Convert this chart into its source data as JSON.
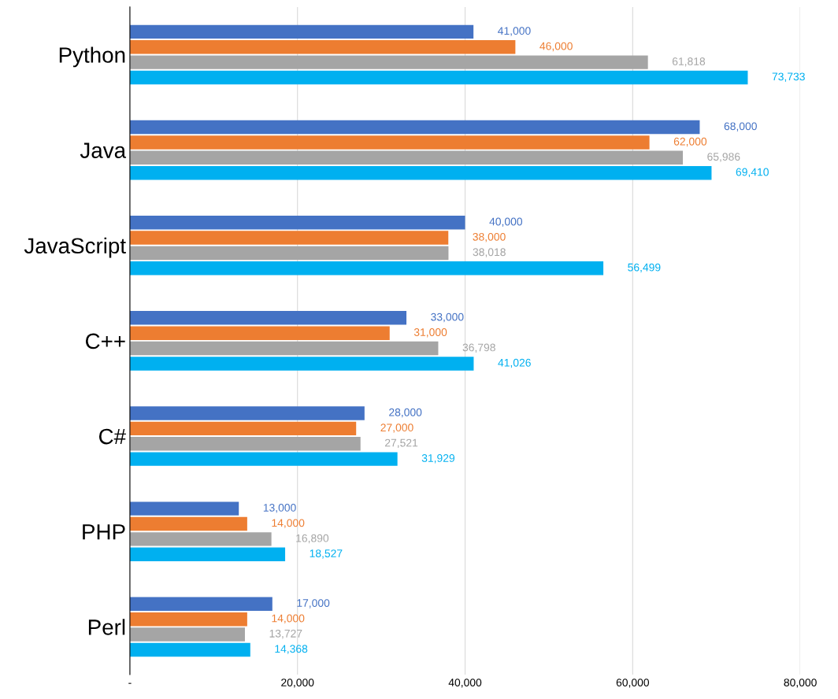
{
  "chart_data": {
    "type": "bar",
    "orientation": "horizontal",
    "categories": [
      "Python",
      "Java",
      "JavaScript",
      "C++",
      "C#",
      "PHP",
      "Perl"
    ],
    "series": [
      {
        "color": "#4472c4",
        "values": [
          41000,
          68000,
          40000,
          33000,
          28000,
          13000,
          17000
        ],
        "value_labels": [
          "41,000",
          "68,000",
          "40,000",
          "33,000",
          "28,000",
          "13,000",
          "17,000"
        ]
      },
      {
        "color": "#ed7d31",
        "values": [
          46000,
          62000,
          38000,
          31000,
          27000,
          14000,
          14000
        ],
        "value_labels": [
          "46,000",
          "62,000",
          "38,000",
          "31,000",
          "27,000",
          "14,000",
          "14,000"
        ]
      },
      {
        "color": "#a5a5a5",
        "values": [
          61818,
          65986,
          38018,
          36798,
          27521,
          16890,
          13727
        ],
        "value_labels": [
          "61,818",
          "65,986",
          "38,018",
          "36,798",
          "27,521",
          "16,890",
          "13,727"
        ]
      },
      {
        "color": "#00b0f0",
        "values": [
          73733,
          69410,
          56499,
          41026,
          31929,
          18527,
          14368
        ],
        "value_labels": [
          "73,733",
          "69,410",
          "56,499",
          "41,026",
          "31,929",
          "18,527",
          "14,368"
        ]
      }
    ],
    "xlim": [
      0,
      80000
    ],
    "xticks": [
      {
        "value": 0,
        "label": "-"
      },
      {
        "value": 20000,
        "label": "20,000"
      },
      {
        "value": 40000,
        "label": "40,000"
      },
      {
        "value": 60000,
        "label": "60,000"
      },
      {
        "value": 80000,
        "label": "80,000"
      }
    ],
    "grid": "x",
    "legend": false
  }
}
